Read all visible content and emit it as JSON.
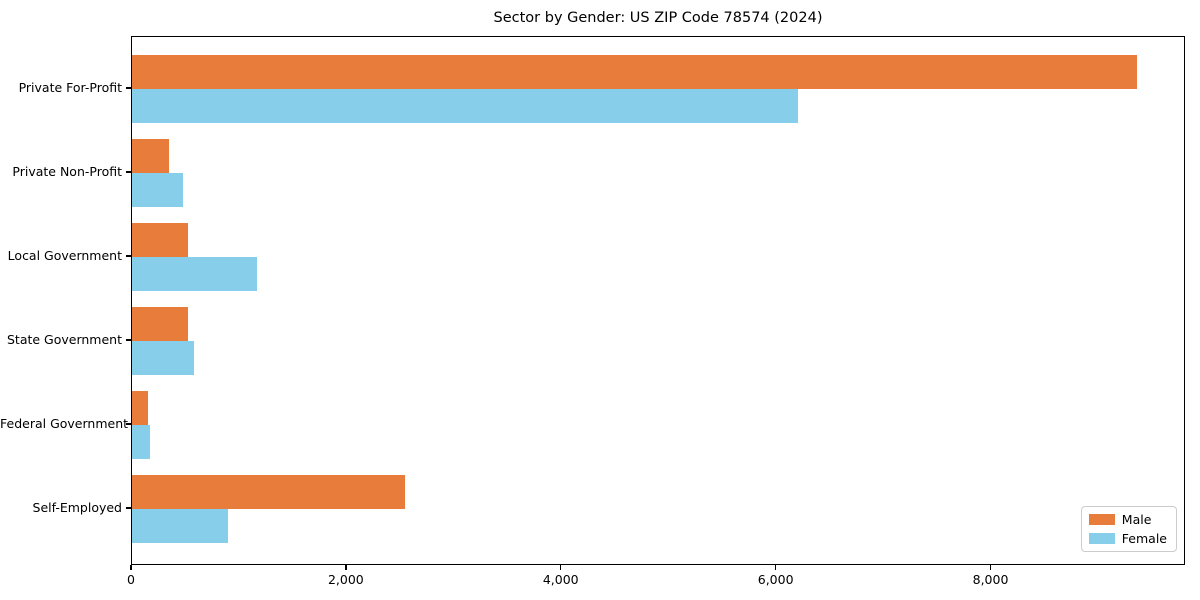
{
  "title": "Sector by Gender: US ZIP Code 78574 (2024)",
  "chart_data": {
    "type": "bar",
    "orientation": "horizontal",
    "title": "Sector by Gender: US ZIP Code 78574 (2024)",
    "categories": [
      "Private For-Profit",
      "Private Non-Profit",
      "Local Government",
      "State Government",
      "Federal Government",
      "Self-Employed"
    ],
    "series": [
      {
        "name": "Male",
        "color": "#e87d3b",
        "values": [
          9350,
          345,
          520,
          520,
          150,
          2540
        ]
      },
      {
        "name": "Female",
        "color": "#87ceeb",
        "values": [
          6200,
          475,
          1165,
          575,
          170,
          895
        ]
      }
    ],
    "xlabel": "",
    "ylabel": "",
    "xlim": [
      0,
      9810
    ],
    "xticks": [
      0,
      2000,
      4000,
      6000,
      8000
    ],
    "xtick_labels": [
      "0",
      "2,000",
      "4,000",
      "6,000",
      "8,000"
    ],
    "grid": false,
    "legend": {
      "position": "lower right",
      "entries": [
        {
          "label": "Male",
          "color": "#e87d3b"
        },
        {
          "label": "Female",
          "color": "#87ceeb"
        }
      ]
    }
  }
}
